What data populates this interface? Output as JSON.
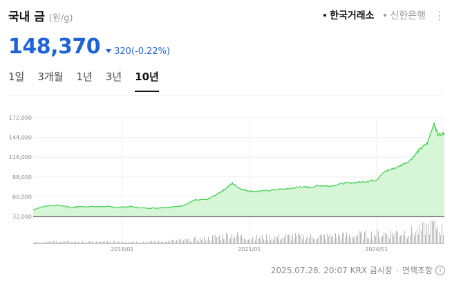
{
  "header": {
    "title": "국내 금",
    "unit": "(원/g)"
  },
  "sources": [
    {
      "label": "한국거래소",
      "active": true
    },
    {
      "label": "신한은행",
      "active": false
    }
  ],
  "more_icon": "more-vertical-icon",
  "quote": {
    "price": "148,370",
    "change": "320",
    "change_pct": "(-0.22%)",
    "direction": "down"
  },
  "tabs": [
    {
      "label": "1일",
      "selected": false
    },
    {
      "label": "3개월",
      "selected": false
    },
    {
      "label": "1년",
      "selected": false
    },
    {
      "label": "3년",
      "selected": false
    },
    {
      "label": "10년",
      "selected": true
    }
  ],
  "footer": {
    "timestamp": "2025.07.28. 20:07 KRX 금시장",
    "separator": "·",
    "disclaimer": "면책조항",
    "info_icon": "info-icon"
  },
  "colors": {
    "price": "#1e64d8",
    "line": "#3fcf4f",
    "fill": "#d7f5d7",
    "volume": "#b5b5b5"
  },
  "chart_data": {
    "type": "area",
    "x_ticks": [
      "2018/01",
      "2021/01",
      "2024/01"
    ],
    "y_ticks": [
      "172,000",
      "144,000",
      "116,000",
      "88,000",
      "60,000",
      "32,000"
    ],
    "ylim": [
      32000,
      172000
    ],
    "xlim": [
      2015.9,
      2025.6
    ],
    "grid": true,
    "x": [
      2015.9,
      2016.2,
      2016.5,
      2016.8,
      2017.0,
      2017.3,
      2017.6,
      2017.9,
      2018.2,
      2018.5,
      2018.8,
      2019.0,
      2019.3,
      2019.5,
      2019.7,
      2020.0,
      2020.2,
      2020.4,
      2020.6,
      2020.8,
      2021.0,
      2021.3,
      2021.6,
      2021.9,
      2022.2,
      2022.4,
      2022.7,
      2022.9,
      2023.2,
      2023.5,
      2023.8,
      2024.0,
      2024.2,
      2024.5,
      2024.8,
      2025.0,
      2025.2,
      2025.35,
      2025.45,
      2025.6
    ],
    "values": [
      42000,
      47000,
      48000,
      45000,
      46000,
      46000,
      46000,
      45000,
      46000,
      44000,
      44000,
      45000,
      46000,
      49000,
      55000,
      56000,
      62000,
      70000,
      79000,
      71000,
      68000,
      68000,
      70000,
      71000,
      74000,
      73000,
      76000,
      75000,
      79000,
      80000,
      82000,
      84000,
      96000,
      102000,
      112000,
      126000,
      136000,
      164000,
      148000,
      150000
    ],
    "volume": {
      "x": [
        2015.9,
        2016.5,
        2017.0,
        2017.5,
        2018.0,
        2018.5,
        2019.0,
        2019.5,
        2020.0,
        2020.3,
        2020.6,
        2021.0,
        2021.5,
        2022.0,
        2022.5,
        2023.0,
        2023.5,
        2024.0,
        2024.5,
        2025.0,
        2025.3,
        2025.5,
        2025.6
      ],
      "values": [
        4,
        6,
        5,
        5,
        6,
        5,
        7,
        11,
        16,
        22,
        28,
        18,
        20,
        22,
        21,
        24,
        26,
        30,
        34,
        38,
        60,
        48,
        36
      ]
    }
  }
}
